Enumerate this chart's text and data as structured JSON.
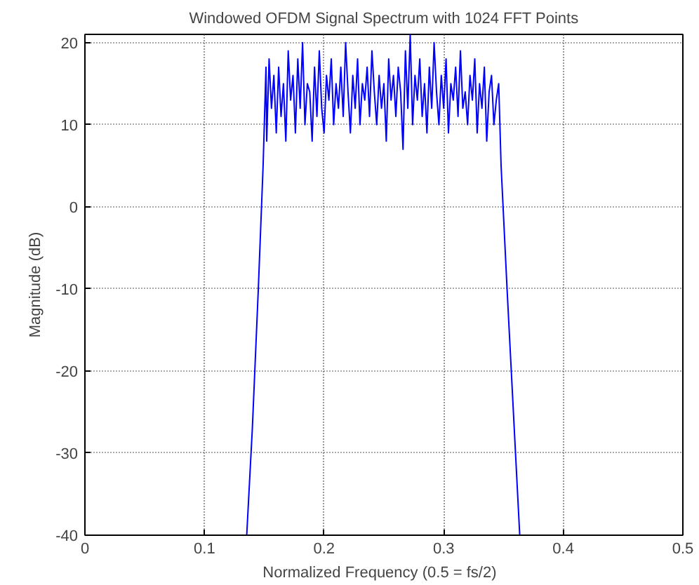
{
  "chart_data": {
    "type": "line",
    "title": "Windowed OFDM Signal Spectrum with 1024 FFT Points",
    "xlabel": "Normalized Frequency (0.5  =  fs/2)",
    "ylabel": "Magnitude (dB)",
    "xlim": [
      0,
      0.5
    ],
    "ylim": [
      -40,
      21
    ],
    "xticks": [
      0,
      0.1,
      0.2,
      0.3,
      0.4,
      0.5
    ],
    "yticks": [
      -40,
      -30,
      -20,
      -10,
      0,
      10,
      20
    ],
    "grid": true,
    "series": [
      {
        "color": "#0000ff",
        "x": [
          0.1353,
          0.14,
          0.145,
          0.149,
          0.1514,
          0.152,
          0.154,
          0.156,
          0.158,
          0.16,
          0.162,
          0.164,
          0.166,
          0.168,
          0.17,
          0.172,
          0.174,
          0.176,
          0.178,
          0.18,
          0.182,
          0.184,
          0.186,
          0.188,
          0.19,
          0.192,
          0.194,
          0.196,
          0.198,
          0.2,
          0.202,
          0.204,
          0.206,
          0.208,
          0.21,
          0.212,
          0.214,
          0.216,
          0.218,
          0.22,
          0.222,
          0.224,
          0.226,
          0.228,
          0.23,
          0.232,
          0.234,
          0.236,
          0.238,
          0.24,
          0.242,
          0.244,
          0.246,
          0.248,
          0.25,
          0.252,
          0.254,
          0.256,
          0.258,
          0.26,
          0.262,
          0.264,
          0.266,
          0.268,
          0.27,
          0.272,
          0.274,
          0.276,
          0.278,
          0.28,
          0.282,
          0.284,
          0.286,
          0.288,
          0.29,
          0.292,
          0.294,
          0.296,
          0.298,
          0.3,
          0.302,
          0.304,
          0.306,
          0.308,
          0.31,
          0.312,
          0.314,
          0.316,
          0.318,
          0.32,
          0.322,
          0.324,
          0.326,
          0.328,
          0.33,
          0.332,
          0.334,
          0.336,
          0.338,
          0.34,
          0.342,
          0.344,
          0.346,
          0.348,
          0.353,
          0.359,
          0.3636
        ],
        "values": [
          -40,
          -27,
          -10,
          5,
          17,
          8,
          18,
          12,
          16,
          9,
          17,
          11,
          15,
          8,
          19,
          13,
          16,
          9,
          18,
          12,
          20,
          10,
          15,
          14,
          8,
          17,
          11,
          19,
          12,
          9,
          16,
          13,
          18,
          10,
          15,
          12,
          17,
          11,
          20,
          14,
          9,
          16,
          12,
          18,
          10,
          15,
          13,
          17,
          11,
          19,
          14,
          10,
          16,
          12,
          15,
          8,
          18,
          13,
          16,
          11,
          17,
          14,
          7,
          19,
          12,
          21,
          10,
          16,
          13,
          18,
          11,
          15,
          9,
          17,
          12,
          20,
          14,
          10,
          16,
          12,
          18,
          9,
          15,
          13,
          17,
          11,
          19,
          12,
          14,
          10,
          16,
          13,
          18,
          9,
          15,
          12,
          17,
          8,
          14,
          16,
          10,
          13,
          15,
          5,
          -10,
          -27,
          -40
        ]
      }
    ]
  }
}
